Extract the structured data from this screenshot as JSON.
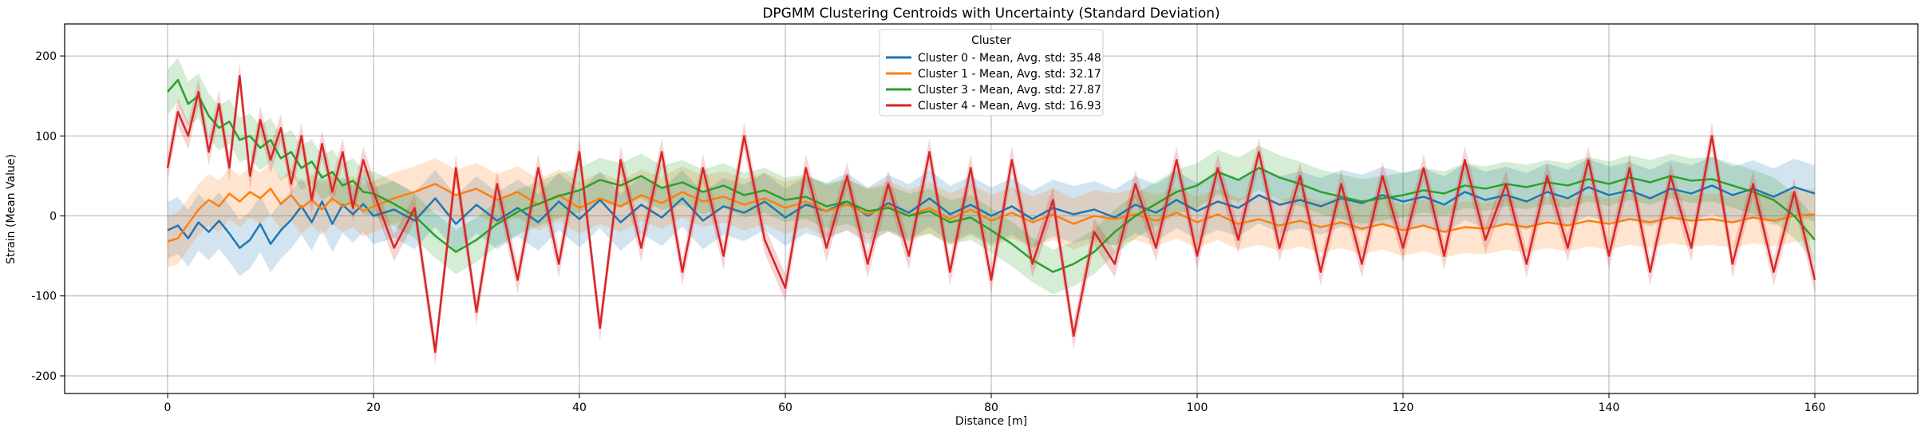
{
  "chart_data": {
    "type": "line",
    "title": "DPGMM Clustering Centroids with Uncertainty (Standard Deviation)",
    "xlabel": "Distance [m]",
    "ylabel": "Strain (Mean Value)",
    "xlim": [
      -10,
      170
    ],
    "ylim": [
      -222,
      240
    ],
    "xticks": [
      0,
      20,
      40,
      60,
      80,
      100,
      120,
      140,
      160
    ],
    "yticks": [
      -200,
      -100,
      0,
      100,
      200
    ],
    "grid": true,
    "legend": {
      "title": "Cluster",
      "placement": "top-center"
    },
    "series": [
      {
        "name": "Cluster 0 - Mean, Avg. std: 35.48",
        "color": "#1f77b4",
        "std": 35.48,
        "x": [
          0,
          1,
          2,
          3,
          4,
          5,
          6,
          7,
          8,
          9,
          10,
          11,
          12,
          13,
          14,
          15,
          16,
          17,
          18,
          19,
          20,
          22,
          24,
          26,
          28,
          30,
          32,
          34,
          36,
          38,
          40,
          42,
          44,
          46,
          48,
          50,
          52,
          54,
          56,
          58,
          60,
          62,
          64,
          66,
          68,
          70,
          72,
          74,
          76,
          78,
          80,
          82,
          84,
          86,
          88,
          90,
          92,
          94,
          96,
          98,
          100,
          102,
          104,
          106,
          108,
          110,
          112,
          114,
          116,
          118,
          120,
          122,
          124,
          126,
          128,
          130,
          132,
          134,
          136,
          138,
          140,
          142,
          144,
          146,
          148,
          150,
          152,
          154,
          156,
          158,
          160
        ],
        "values": [
          -18,
          -12,
          -28,
          -8,
          -20,
          -6,
          -22,
          -40,
          -30,
          -10,
          -35,
          -18,
          -5,
          12,
          -8,
          18,
          -10,
          14,
          2,
          15,
          0,
          8,
          -6,
          22,
          -10,
          14,
          -6,
          10,
          -8,
          18,
          -4,
          20,
          -8,
          14,
          -2,
          22,
          -6,
          12,
          4,
          18,
          -2,
          14,
          6,
          18,
          0,
          16,
          4,
          22,
          2,
          14,
          0,
          12,
          -4,
          10,
          2,
          8,
          -2,
          14,
          4,
          20,
          6,
          18,
          10,
          26,
          14,
          20,
          12,
          22,
          16,
          26,
          18,
          24,
          14,
          30,
          20,
          26,
          18,
          30,
          22,
          36,
          26,
          32,
          22,
          34,
          28,
          38,
          26,
          34,
          24,
          36,
          28
        ]
      },
      {
        "name": "Cluster 1 - Mean, Avg. std: 32.17",
        "color": "#ff7f0e",
        "std": 32.17,
        "x": [
          0,
          1,
          2,
          3,
          4,
          5,
          6,
          7,
          8,
          9,
          10,
          11,
          12,
          13,
          14,
          15,
          16,
          17,
          18,
          19,
          20,
          22,
          24,
          26,
          28,
          30,
          32,
          34,
          36,
          38,
          40,
          42,
          44,
          46,
          48,
          50,
          52,
          54,
          56,
          58,
          60,
          62,
          64,
          66,
          68,
          70,
          72,
          74,
          76,
          78,
          80,
          82,
          84,
          86,
          88,
          90,
          92,
          94,
          96,
          98,
          100,
          102,
          104,
          106,
          108,
          110,
          112,
          114,
          116,
          118,
          120,
          122,
          124,
          126,
          128,
          130,
          132,
          134,
          136,
          138,
          140,
          142,
          144,
          146,
          148,
          150,
          152,
          154,
          156,
          158,
          160
        ],
        "values": [
          -32,
          -28,
          -10,
          8,
          20,
          12,
          28,
          18,
          30,
          22,
          34,
          15,
          26,
          10,
          20,
          8,
          22,
          12,
          18,
          6,
          12,
          22,
          30,
          40,
          26,
          34,
          20,
          30,
          14,
          26,
          10,
          22,
          12,
          26,
          16,
          30,
          18,
          24,
          14,
          22,
          10,
          18,
          6,
          14,
          2,
          12,
          0,
          10,
          -4,
          8,
          -6,
          4,
          -8,
          2,
          -10,
          0,
          -4,
          2,
          -6,
          4,
          -8,
          2,
          -10,
          -4,
          -12,
          -6,
          -14,
          -8,
          -16,
          -10,
          -18,
          -12,
          -20,
          -14,
          -16,
          -10,
          -14,
          -8,
          -12,
          -6,
          -10,
          -4,
          -8,
          -2,
          -6,
          -4,
          -8,
          -2,
          -6,
          0,
          2
        ]
      },
      {
        "name": "Cluster 3 - Mean, Avg. std: 27.87",
        "color": "#2ca02c",
        "std": 27.87,
        "x": [
          0,
          1,
          2,
          3,
          4,
          5,
          6,
          7,
          8,
          9,
          10,
          11,
          12,
          13,
          14,
          15,
          16,
          17,
          18,
          19,
          20,
          22,
          24,
          26,
          28,
          30,
          32,
          34,
          36,
          38,
          40,
          42,
          44,
          46,
          48,
          50,
          52,
          54,
          56,
          58,
          60,
          62,
          64,
          66,
          68,
          70,
          72,
          74,
          76,
          78,
          80,
          82,
          84,
          86,
          88,
          90,
          92,
          94,
          96,
          98,
          100,
          102,
          104,
          106,
          108,
          110,
          112,
          114,
          116,
          118,
          120,
          122,
          124,
          126,
          128,
          130,
          132,
          134,
          136,
          138,
          140,
          142,
          144,
          146,
          148,
          150,
          152,
          154,
          156,
          158,
          160
        ],
        "values": [
          155,
          170,
          140,
          150,
          125,
          110,
          118,
          95,
          100,
          85,
          95,
          72,
          80,
          60,
          68,
          48,
          55,
          38,
          44,
          30,
          28,
          15,
          0,
          -25,
          -45,
          -30,
          -10,
          5,
          15,
          25,
          32,
          45,
          38,
          50,
          35,
          42,
          30,
          38,
          26,
          32,
          20,
          24,
          12,
          18,
          6,
          10,
          0,
          6,
          -8,
          -2,
          -18,
          -35,
          -55,
          -70,
          -60,
          -45,
          -20,
          0,
          15,
          30,
          38,
          55,
          45,
          60,
          48,
          40,
          30,
          24,
          18,
          22,
          26,
          32,
          28,
          38,
          34,
          40,
          36,
          42,
          38,
          46,
          40,
          48,
          42,
          50,
          44,
          46,
          38,
          30,
          20,
          0,
          -30
        ]
      },
      {
        "name": "Cluster 4 - Mean, Avg. std: 16.93",
        "color": "#d62728",
        "std": 16.93,
        "x": [
          0,
          1,
          2,
          3,
          4,
          5,
          6,
          7,
          8,
          9,
          10,
          11,
          12,
          13,
          14,
          15,
          16,
          17,
          18,
          19,
          20,
          22,
          24,
          26,
          28,
          30,
          32,
          34,
          36,
          38,
          40,
          42,
          44,
          46,
          48,
          50,
          52,
          54,
          56,
          58,
          60,
          62,
          64,
          66,
          68,
          70,
          72,
          74,
          76,
          78,
          80,
          82,
          84,
          86,
          88,
          90,
          92,
          94,
          96,
          98,
          100,
          102,
          104,
          106,
          108,
          110,
          112,
          114,
          116,
          118,
          120,
          122,
          124,
          126,
          128,
          130,
          132,
          134,
          136,
          138,
          140,
          142,
          144,
          146,
          148,
          150,
          152,
          154,
          156,
          158,
          160
        ],
        "values": [
          60,
          130,
          100,
          155,
          80,
          140,
          60,
          175,
          50,
          120,
          70,
          110,
          40,
          100,
          20,
          90,
          30,
          80,
          10,
          70,
          30,
          -40,
          10,
          -170,
          60,
          -120,
          40,
          -80,
          60,
          -60,
          80,
          -140,
          70,
          -40,
          80,
          -70,
          60,
          -50,
          100,
          -30,
          -90,
          60,
          -40,
          50,
          -60,
          40,
          -50,
          80,
          -70,
          60,
          -80,
          70,
          -60,
          20,
          -150,
          -20,
          -60,
          40,
          -40,
          70,
          -50,
          60,
          -30,
          80,
          -40,
          50,
          -70,
          40,
          -60,
          50,
          -40,
          60,
          -50,
          70,
          -30,
          40,
          -60,
          50,
          -40,
          70,
          -50,
          60,
          -70,
          50,
          -40,
          100,
          -60,
          40,
          -70,
          30,
          -80
        ]
      }
    ]
  }
}
